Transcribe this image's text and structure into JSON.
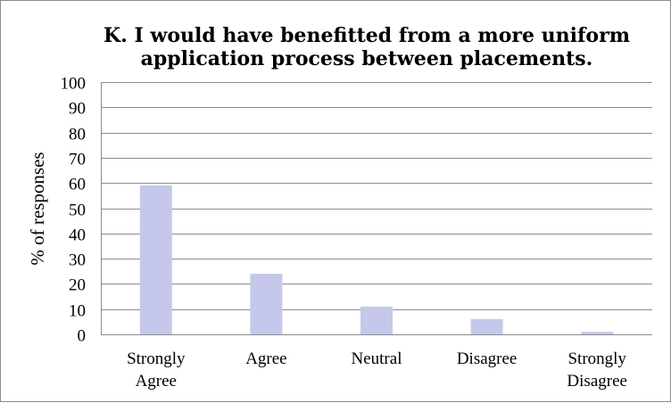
{
  "chart_data": {
    "type": "bar",
    "title_lines": [
      "K. I would have benefitted from a more uniform",
      "application process between placements."
    ],
    "categories": [
      [
        "Strongly",
        "Agree"
      ],
      [
        "Agree"
      ],
      [
        "Neutral"
      ],
      [
        "Disagree"
      ],
      [
        "Strongly",
        "Disagree"
      ]
    ],
    "values": [
      59,
      24,
      11,
      6,
      1
    ],
    "ylabel": "% of responses",
    "xlabel": "",
    "ylim": [
      0,
      100
    ],
    "yticks": [
      "0",
      "10",
      "20",
      "30",
      "40",
      "50",
      "60",
      "70",
      "80",
      "90",
      "100"
    ],
    "grid": true,
    "legend": "none",
    "bar_color": "#c5c8ea",
    "grid_color": "#8c8c8c"
  }
}
